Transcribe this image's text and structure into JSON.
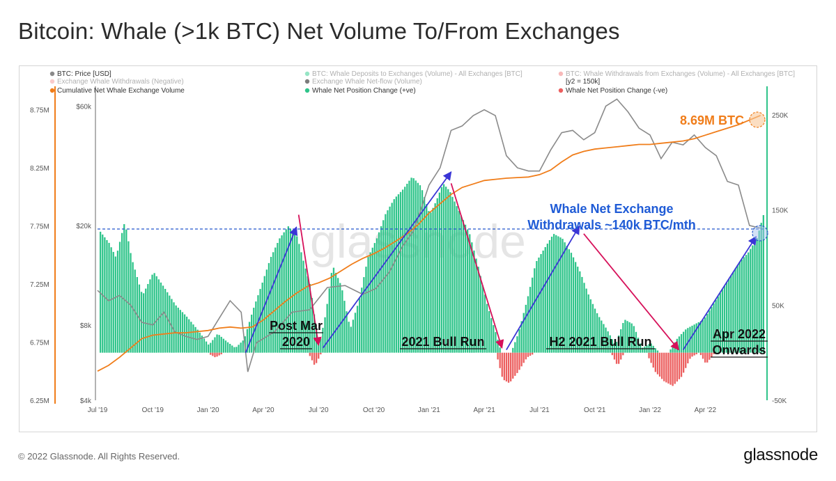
{
  "title": "Bitcoin: Whale (>1k BTC) Net Volume To/From Exchanges",
  "footer": {
    "copyright": "© 2022 Glassnode. All Rights Reserved.",
    "logo": "glassnode"
  },
  "watermark": "glassnode",
  "legend": [
    {
      "label": "BTC: Price [USD]",
      "color": "#8a8a8a",
      "faded": false
    },
    {
      "label": "BTC: Whale Deposits to Exchanges (Volume) - All Exchanges [BTC]",
      "color": "#3fcf96",
      "faded": true
    },
    {
      "label": "BTC: Whale Withdrawals from Exchanges (Volume) - All Exchanges [BTC]",
      "color": "#f08080",
      "faded": true
    },
    {
      "label": "Exchange Whale Withdrawals (Negative)",
      "color": "#f4a0a0",
      "faded": true
    },
    {
      "label": "Exchange Whale Net-flow (Volume)",
      "color": "#111111",
      "faded": true
    },
    {
      "label": "[y2 = 150k]",
      "color": "",
      "faded": false
    },
    {
      "label": "Cumulative Net Whale Exchange Volume",
      "color": "#f07d1a",
      "faded": false
    },
    {
      "label": "Whale Net Position Change (+ve)",
      "color": "#2fc48a",
      "faded": false
    },
    {
      "label": "Whale Net Position Change (-ve)",
      "color": "#ec5f5f",
      "faded": false
    }
  ],
  "chart_data": {
    "type": "area",
    "x_ticks": [
      "Jul '19",
      "Oct '19",
      "Jan '20",
      "Apr '20",
      "Jul '20",
      "Oct '20",
      "Jan '21",
      "Apr '21",
      "Jul '21",
      "Oct '21",
      "Jan '22",
      "Apr '22"
    ],
    "y_left_cumulative_ticks": [
      "8.75M",
      "8.25M",
      "7.75M",
      "7.25M",
      "6.75M",
      "6.25M"
    ],
    "y_left_cumulative_range": [
      6250000,
      8950000
    ],
    "y_price_ticks": [
      "$60k",
      "$20k",
      "$8k",
      "$4k"
    ],
    "y_price_scale": "log",
    "y_price_range": [
      4000,
      72000
    ],
    "y_right_ticks": [
      "250K",
      "150K",
      "50K",
      "-50K"
    ],
    "y_right_range": [
      -50000,
      280000
    ],
    "series": [
      {
        "name": "Whale Net Position Change (+ve)",
        "color": "#2fc48a",
        "x": [
          2019.5,
          2019.55,
          2019.58,
          2019.62,
          2019.65,
          2019.7,
          2019.75,
          2019.8,
          2019.85,
          2019.9,
          2019.95,
          2020.0,
          2020.04,
          2020.08,
          2020.12,
          2020.16,
          2020.2,
          2020.24,
          2020.28,
          2020.32,
          2020.36,
          2020.4,
          2020.43,
          2020.46,
          2020.48,
          2020.5,
          2020.53,
          2020.56,
          2020.6,
          2020.64,
          2020.68,
          2020.72,
          2020.76,
          2020.8,
          2020.84,
          2020.88,
          2020.92,
          2020.96,
          2021.0,
          2021.03,
          2021.06,
          2021.09,
          2021.12,
          2021.15,
          2021.18,
          2021.22,
          2021.26,
          2021.3,
          2021.33,
          2021.36,
          2021.4,
          2021.44,
          2021.48,
          2021.52,
          2021.56,
          2021.6,
          2021.64,
          2021.68,
          2021.72,
          2021.76,
          2021.8,
          2021.84,
          2021.88,
          2021.92,
          2021.96,
          2022.0,
          2022.04,
          2022.08,
          2022.12,
          2022.16,
          2022.2,
          2022.24,
          2022.28,
          2022.32,
          2022.36,
          2022.4,
          2022.44,
          2022.48,
          2022.51
        ],
        "values": [
          130000,
          115000,
          100000,
          138000,
          100000,
          60000,
          85000,
          68000,
          50000,
          38000,
          24000,
          8000,
          20000,
          12000,
          5000,
          14000,
          45000,
          72000,
          100000,
          120000,
          133000,
          122000,
          95000,
          70000,
          35000,
          8000,
          42000,
          92000,
          70000,
          25000,
          55000,
          100000,
          120000,
          146000,
          162000,
          172000,
          185000,
          175000,
          145000,
          160000,
          178000,
          170000,
          155000,
          140000,
          125000,
          90000,
          50000,
          20000,
          -5000,
          -5000,
          20000,
          55000,
          95000,
          110000,
          125000,
          120000,
          105000,
          85000,
          60000,
          40000,
          25000,
          8000,
          35000,
          30000,
          5000,
          10000,
          0,
          0,
          15000,
          25000,
          30000,
          35000,
          50000,
          65000,
          80000,
          95000,
          105000,
          120000,
          145000
        ]
      },
      {
        "name": "Whale Net Position Change (-ve)",
        "color": "#ec5f5f",
        "x": [
          2019.99,
          2020.03,
          2020.07,
          2020.45,
          2020.48,
          2020.51,
          2021.3,
          2021.33,
          2021.36,
          2021.4,
          2021.44,
          2021.48,
          2021.82,
          2021.85,
          2021.88,
          2021.98,
          2022.02,
          2022.06,
          2022.1,
          2022.14,
          2022.18,
          2022.22,
          2022.25,
          2022.29
        ],
        "values": [
          0,
          -5000,
          0,
          0,
          -14000,
          0,
          0,
          -28000,
          -32000,
          -20000,
          -5000,
          0,
          0,
          -14000,
          0,
          0,
          -20000,
          -30000,
          -35000,
          -25000,
          -5000,
          0,
          -12000,
          0
        ]
      },
      {
        "name": "BTC: Price [USD]",
        "color": "#8a8a8a",
        "x": [
          2019.5,
          2019.55,
          2019.6,
          2019.65,
          2019.7,
          2019.75,
          2019.8,
          2019.85,
          2019.9,
          2019.95,
          2020.0,
          2020.05,
          2020.1,
          2020.15,
          2020.18,
          2020.22,
          2020.3,
          2020.38,
          2020.46,
          2020.54,
          2020.62,
          2020.7,
          2020.76,
          2020.82,
          2020.88,
          2020.93,
          2021.0,
          2021.05,
          2021.1,
          2021.15,
          2021.2,
          2021.25,
          2021.3,
          2021.35,
          2021.4,
          2021.45,
          2021.5,
          2021.55,
          2021.6,
          2021.65,
          2021.7,
          2021.75,
          2021.8,
          2021.85,
          2021.9,
          2021.95,
          2022.0,
          2022.05,
          2022.1,
          2022.15,
          2022.2,
          2022.25,
          2022.3,
          2022.35,
          2022.4,
          2022.45,
          2022.5
        ],
        "values": [
          11000,
          10000,
          10500,
          9600,
          8200,
          8000,
          9000,
          7500,
          7200,
          7000,
          7200,
          8500,
          10000,
          9000,
          5200,
          6800,
          7500,
          9000,
          9200,
          11300,
          11500,
          10600,
          11200,
          13000,
          16500,
          19000,
          29000,
          34000,
          48000,
          50000,
          55000,
          58000,
          55000,
          38000,
          34000,
          33000,
          33000,
          40000,
          47000,
          48000,
          44000,
          47000,
          60000,
          64000,
          57000,
          49000,
          46000,
          37000,
          43000,
          42000,
          46000,
          41000,
          38000,
          30000,
          29000,
          20000,
          19500
        ]
      },
      {
        "name": "Cumulative Net Whale Exchange Volume",
        "color": "#f07d1a",
        "x": [
          2019.5,
          2019.55,
          2019.6,
          2019.65,
          2019.7,
          2019.75,
          2019.8,
          2019.85,
          2019.9,
          2019.95,
          2020.0,
          2020.05,
          2020.1,
          2020.15,
          2020.2,
          2020.25,
          2020.3,
          2020.35,
          2020.4,
          2020.45,
          2020.5,
          2020.55,
          2020.6,
          2020.65,
          2020.7,
          2020.75,
          2020.8,
          2020.85,
          2020.9,
          2020.95,
          2021.0,
          2021.05,
          2021.1,
          2021.15,
          2021.2,
          2021.25,
          2021.3,
          2021.35,
          2021.4,
          2021.45,
          2021.5,
          2021.55,
          2021.6,
          2021.65,
          2021.7,
          2021.75,
          2021.8,
          2021.85,
          2021.9,
          2021.95,
          2022.0,
          2022.05,
          2022.1,
          2022.15,
          2022.2,
          2022.25,
          2022.3,
          2022.35,
          2022.4,
          2022.45,
          2022.5
        ],
        "values": [
          6500000,
          6550000,
          6620000,
          6700000,
          6780000,
          6810000,
          6820000,
          6830000,
          6830000,
          6840000,
          6850000,
          6870000,
          6880000,
          6870000,
          6880000,
          6940000,
          7020000,
          7100000,
          7170000,
          7230000,
          7260000,
          7300000,
          7360000,
          7420000,
          7470000,
          7510000,
          7560000,
          7620000,
          7680000,
          7760000,
          7860000,
          7940000,
          8020000,
          8080000,
          8110000,
          8140000,
          8150000,
          8160000,
          8165000,
          8170000,
          8190000,
          8230000,
          8300000,
          8360000,
          8390000,
          8410000,
          8420000,
          8430000,
          8440000,
          8450000,
          8450000,
          8460000,
          8470000,
          8480000,
          8500000,
          8530000,
          8560000,
          8590000,
          8620000,
          8660000,
          8700000
        ]
      }
    ],
    "reference_line": {
      "value": 130000,
      "style": "dashed",
      "color": "#2255cc"
    },
    "annotations": [
      {
        "text": "8.69M BTC",
        "color": "#f07d1a"
      },
      {
        "text": "Whale Net Exchange",
        "color": "#1f5bd6"
      },
      {
        "text": "Withdrawals ~140k BTC/mth",
        "color": "#1f5bd6"
      },
      {
        "text": "Post Mar",
        "color": "#111111"
      },
      {
        "text": "2020",
        "color": "#111111"
      },
      {
        "text": "2021 Bull Run",
        "color": "#111111"
      },
      {
        "text": "H2 2021 Bull Run",
        "color": "#111111"
      },
      {
        "text": "Apr 2022",
        "color": "#111111"
      },
      {
        "text": "Onwards",
        "color": "#111111"
      }
    ],
    "trend_arrows": [
      {
        "from": [
          2020.17,
          0
        ],
        "to": [
          2020.4,
          132000
        ],
        "color": "#3a35d6"
      },
      {
        "from": [
          2020.41,
          145000
        ],
        "to": [
          2020.5,
          8000
        ],
        "color": "#d6115a"
      },
      {
        "from": [
          2020.52,
          5000
        ],
        "to": [
          2021.1,
          190000
        ],
        "color": "#3a35d6"
      },
      {
        "from": [
          2021.1,
          178000
        ],
        "to": [
          2021.33,
          5000
        ],
        "color": "#d6115a"
      },
      {
        "from": [
          2021.35,
          3000
        ],
        "to": [
          2021.68,
          133000
        ],
        "color": "#3a35d6"
      },
      {
        "from": [
          2021.7,
          125000
        ],
        "to": [
          2022.13,
          3000
        ],
        "color": "#d6115a"
      },
      {
        "from": [
          2022.15,
          3000
        ],
        "to": [
          2022.48,
          122000
        ],
        "color": "#3a35d6"
      }
    ]
  }
}
